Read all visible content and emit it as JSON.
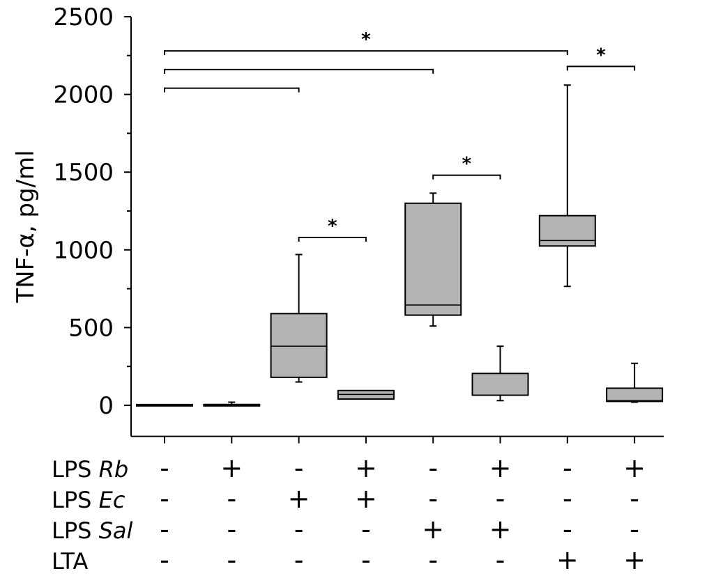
{
  "chart_data": {
    "type": "box",
    "ylabel": "TNF-α, pg/ml",
    "ylim": [
      -200,
      2500
    ],
    "yticks": [
      0,
      500,
      1000,
      1500,
      2000,
      2500
    ],
    "ytick_labels": [
      "0",
      "500",
      "1000",
      "1500",
      "2000",
      "2500"
    ],
    "fill_color": "#b3b3b3",
    "condition_rows": [
      {
        "label_prefix": "LPS ",
        "label_italic": "Rb",
        "values": [
          "-",
          "+",
          "-",
          "+",
          "-",
          "+",
          "-",
          "+"
        ]
      },
      {
        "label_prefix": "LPS ",
        "label_italic": "Ec",
        "values": [
          "-",
          "-",
          "+",
          "+",
          "-",
          "-",
          "-",
          "-"
        ]
      },
      {
        "label_prefix": "LPS ",
        "label_italic": "Sal",
        "values": [
          "-",
          "-",
          "-",
          "-",
          "+",
          "+",
          "-",
          "-"
        ]
      },
      {
        "label_prefix": "LTA",
        "label_italic": "",
        "values": [
          "-",
          "-",
          "-",
          "-",
          "-",
          "-",
          "+",
          "+"
        ]
      }
    ],
    "boxes": [
      {
        "group": 1,
        "min": 0,
        "q1": 0,
        "median": 0,
        "q3": 5,
        "max": 5
      },
      {
        "group": 2,
        "min": 0,
        "q1": 0,
        "median": 3,
        "q3": 5,
        "max": 20
      },
      {
        "group": 3,
        "min": 150,
        "q1": 180,
        "median": 380,
        "q3": 590,
        "max": 970
      },
      {
        "group": 4,
        "min": 40,
        "q1": 40,
        "median": 70,
        "q3": 95,
        "max": 95
      },
      {
        "group": 5,
        "min": 510,
        "q1": 580,
        "median": 645,
        "q3": 1300,
        "max": 1365
      },
      {
        "group": 6,
        "min": 30,
        "q1": 65,
        "median": 65,
        "q3": 205,
        "max": 380
      },
      {
        "group": 7,
        "min": 765,
        "q1": 1025,
        "median": 1060,
        "q3": 1220,
        "max": 2060
      },
      {
        "group": 8,
        "min": 20,
        "q1": 25,
        "median": 30,
        "q3": 110,
        "max": 270
      }
    ],
    "significance": [
      {
        "from_group": 1,
        "to_group": 7,
        "level": 2280,
        "label": "*"
      },
      {
        "from_group": 7,
        "to_group": 8,
        "level": 2180,
        "label": "*"
      },
      {
        "from_group": 1,
        "to_group": 5,
        "level": 2160,
        "label": ""
      },
      {
        "from_group": 1,
        "to_group": 3,
        "level": 2040,
        "label": ""
      },
      {
        "from_group": 5,
        "to_group": 6,
        "level": 1480,
        "label": "*"
      },
      {
        "from_group": 3,
        "to_group": 4,
        "level": 1080,
        "label": "*"
      }
    ]
  }
}
